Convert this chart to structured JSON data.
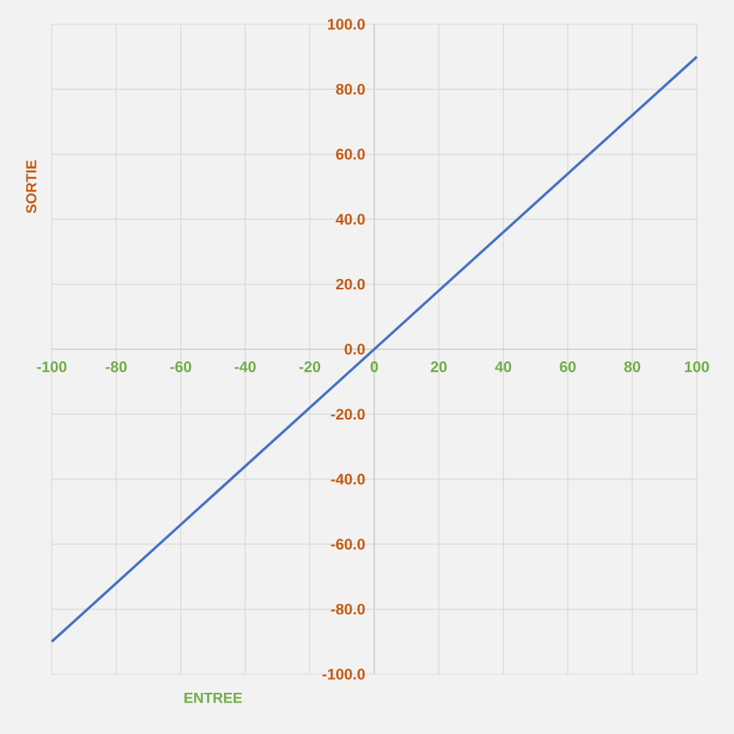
{
  "chart_data": {
    "type": "line",
    "xlabel": "ENTREE",
    "ylabel": "SORTIE",
    "x": [
      -100,
      100
    ],
    "series": [
      {
        "color": "#4472c4",
        "values": [
          -90,
          90
        ]
      }
    ],
    "xlim": [
      -100,
      100
    ],
    "ylim": [
      -100,
      100
    ],
    "xticks": [
      -100,
      -80,
      -60,
      -40,
      -20,
      0,
      20,
      40,
      60,
      80,
      100
    ],
    "yticks": [
      {
        "value": -100,
        "label": "-100.0"
      },
      {
        "value": -80,
        "label": "-80.0"
      },
      {
        "value": -60,
        "label": "-60.0"
      },
      {
        "value": -40,
        "label": "-40.0"
      },
      {
        "value": -20,
        "label": "-20.0"
      },
      {
        "value": 0,
        "label": "0.0"
      },
      {
        "value": 20,
        "label": "20.0"
      },
      {
        "value": 40,
        "label": "40.0"
      },
      {
        "value": 60,
        "label": "60.0"
      },
      {
        "value": 80,
        "label": "80.0"
      },
      {
        "value": 100,
        "label": "100.0"
      }
    ],
    "grid": true,
    "marker": "none",
    "line_style": "solid"
  }
}
